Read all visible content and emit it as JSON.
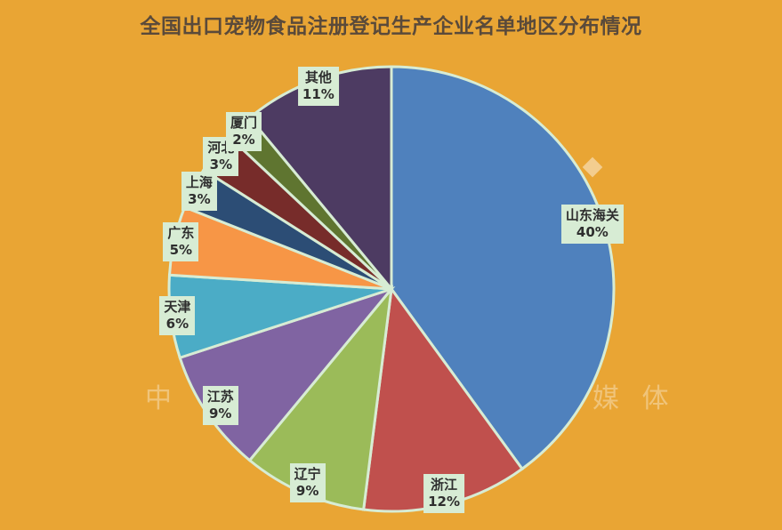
{
  "title": "全国出口宠物食品注册登记生产企业名单地区分布情况",
  "watermark": {
    "left_text": "中",
    "right_text": "媒 体"
  },
  "chart_data": {
    "type": "pie",
    "start_angle_deg": 0,
    "direction": "clockwise",
    "slices": [
      {
        "label": "山东海关",
        "value": 40,
        "percent": "40%",
        "color": "#4F81BD"
      },
      {
        "label": "浙江",
        "value": 12,
        "percent": "12%",
        "color": "#C0504D"
      },
      {
        "label": "辽宁",
        "value": 9,
        "percent": "9%",
        "color": "#9BBB59"
      },
      {
        "label": "江苏",
        "value": 9,
        "percent": "9%",
        "color": "#8064A2"
      },
      {
        "label": "天津",
        "value": 6,
        "percent": "6%",
        "color": "#4BACC6"
      },
      {
        "label": "广东",
        "value": 5,
        "percent": "5%",
        "color": "#F79646"
      },
      {
        "label": "上海",
        "value": 3,
        "percent": "3%",
        "color": "#2C4D75"
      },
      {
        "label": "河北",
        "value": 3,
        "percent": "3%",
        "color": "#772C2A"
      },
      {
        "label": "厦门",
        "value": 2,
        "percent": "2%",
        "color": "#5F7530"
      },
      {
        "label": "其他",
        "value": 11,
        "percent": "11%",
        "color": "#4D3B62"
      }
    ],
    "colors": {
      "background": "#E9A534",
      "slice_border": "#D7ECD4",
      "label_background": "#D7ECD4"
    }
  }
}
